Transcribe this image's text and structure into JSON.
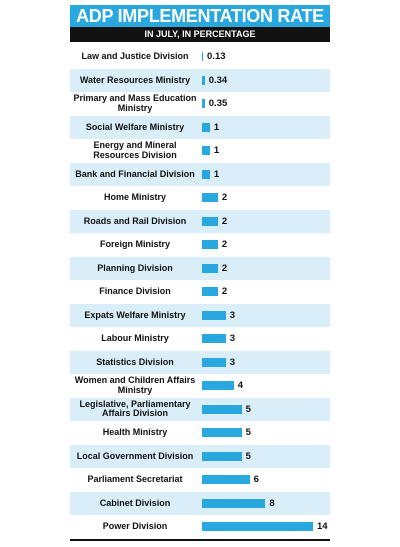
{
  "chart_data": {
    "type": "bar",
    "orientation": "horizontal",
    "title": "ADP IMPLEMENTATION RATE",
    "subtitle": "IN JULY, IN PERCENTAGE",
    "color": "#29a8e0",
    "categories": [
      "Law and Justice Division",
      "Water Resources Ministry",
      "Primary and Mass Education Ministry",
      "Social Welfare Ministry",
      "Energy and Mineral Resources Division",
      "Bank and Financial Division",
      "Home Ministry",
      "Roads and Rail Division",
      "Foreign Ministry",
      "Planning Division",
      "Finance Division",
      "Expats Welfare Ministry",
      "Labour Ministry",
      "Statistics Division",
      "Women and Children Affairs Ministry",
      "Legislative, Parliamentary Affairs Division",
      "Health Ministry",
      "Local Government Division",
      "Parliament Secretariat",
      "Cabinet Division",
      "Power Division"
    ],
    "values": [
      0.13,
      0.34,
      0.35,
      1,
      1,
      1,
      2,
      2,
      2,
      2,
      2,
      3,
      3,
      3,
      4,
      5,
      5,
      5,
      6,
      8,
      14
    ]
  }
}
